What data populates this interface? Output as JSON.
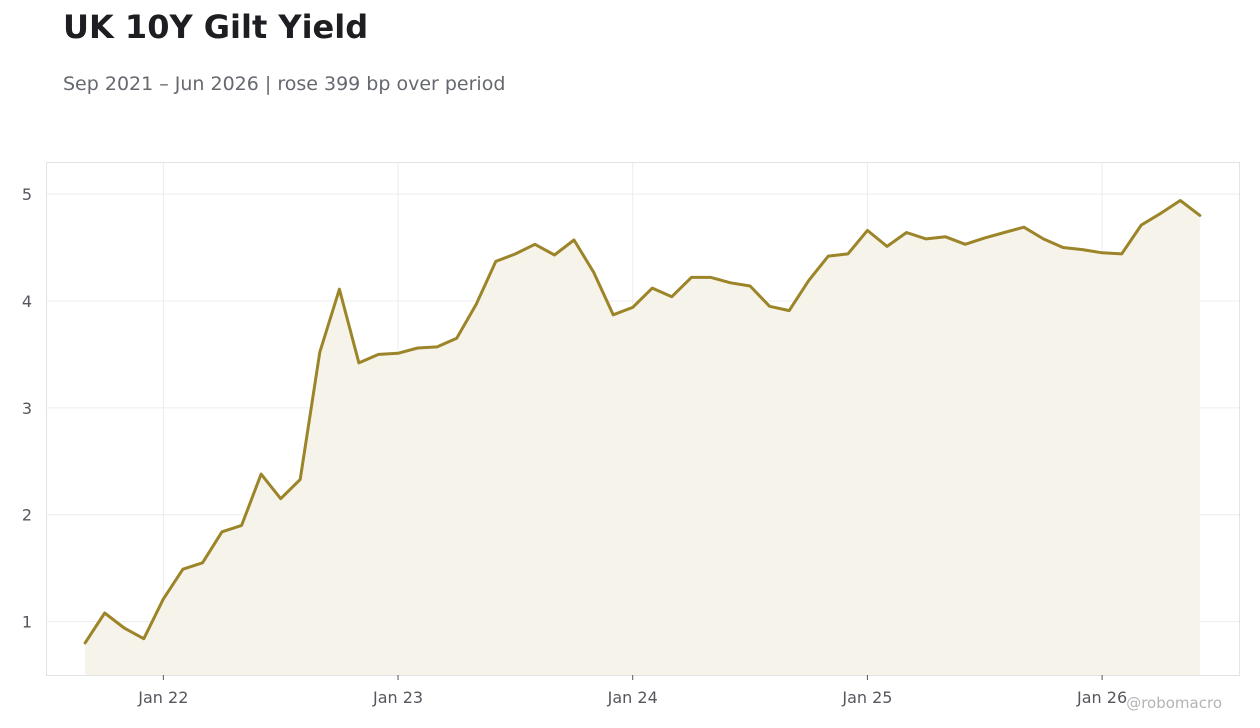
{
  "title": "UK 10Y Gilt Yield",
  "subtitle": "Sep 2021 – Jun 2026 | rose 399 bp over period",
  "watermark": "@robomacro",
  "colors": {
    "line": "#9c8429",
    "fill": "#f6f3ea",
    "grid": "#ececec",
    "frame": "#e3e3e3"
  },
  "chart_data": {
    "type": "area",
    "title": "UK 10Y Gilt Yield",
    "subtitle": "Sep 2021 – Jun 2026 | rose 399 bp over period",
    "xlabel": "",
    "ylabel": "",
    "x": [
      "2021-09",
      "2021-10",
      "2021-11",
      "2021-12",
      "2022-01",
      "2022-02",
      "2022-03",
      "2022-04",
      "2022-05",
      "2022-06",
      "2022-07",
      "2022-08",
      "2022-09",
      "2022-10",
      "2022-11",
      "2022-12",
      "2023-01",
      "2023-02",
      "2023-03",
      "2023-04",
      "2023-05",
      "2023-06",
      "2023-07",
      "2023-08",
      "2023-09",
      "2023-10",
      "2023-11",
      "2023-12",
      "2024-01",
      "2024-02",
      "2024-03",
      "2024-04",
      "2024-05",
      "2024-06",
      "2024-07",
      "2024-08",
      "2024-09",
      "2024-10",
      "2024-11",
      "2024-12",
      "2025-01",
      "2025-02",
      "2025-03",
      "2025-04",
      "2025-05",
      "2025-06",
      "2025-07",
      "2025-08",
      "2025-09",
      "2025-10",
      "2025-11",
      "2025-12",
      "2026-01",
      "2026-02",
      "2026-03",
      "2026-04",
      "2026-05",
      "2026-06"
    ],
    "series": [
      {
        "values": [
          0.8,
          1.08,
          0.94,
          0.84,
          1.21,
          1.49,
          1.55,
          1.84,
          1.9,
          2.38,
          2.15,
          2.33,
          3.52,
          4.11,
          3.42,
          3.5,
          3.51,
          3.56,
          3.57,
          3.65,
          3.97,
          4.37,
          4.44,
          4.53,
          4.43,
          4.57,
          4.27,
          3.87,
          3.94,
          4.12,
          4.04,
          4.22,
          4.22,
          4.17,
          4.14,
          3.95,
          3.91,
          4.19,
          4.42,
          4.44,
          4.66,
          4.51,
          4.64,
          4.58,
          4.6,
          4.53,
          4.59,
          4.64,
          4.69,
          4.58,
          4.5,
          4.48,
          4.45,
          4.44,
          4.71,
          4.82,
          4.94,
          4.8
        ]
      }
    ],
    "x_ticks": [
      "Jan 22",
      "Jan 23",
      "Jan 24",
      "Jan 25",
      "Jan 26"
    ],
    "y_ticks": [
      1,
      2,
      3,
      4,
      5
    ],
    "xlim": [
      "2021-07",
      "2026-08"
    ],
    "ylim": [
      0.5,
      5.3
    ],
    "grid": true,
    "legend": "none"
  }
}
